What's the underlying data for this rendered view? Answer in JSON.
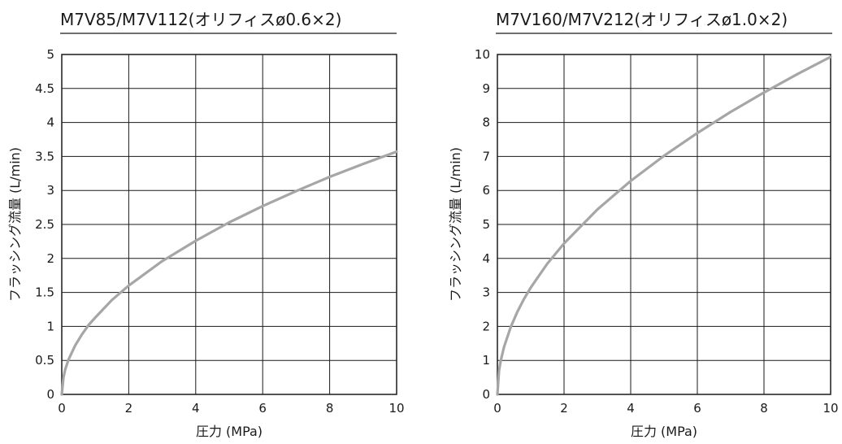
{
  "chart_data": [
    {
      "type": "line",
      "title": "M7V85/M7V112(オリフィスø0.6×2)",
      "xlabel": "圧力 (MPa)",
      "ylabel": "フラッシング流量 (L/min)",
      "xlim": [
        0,
        10
      ],
      "ylim": [
        0,
        5
      ],
      "xticks": [
        0,
        2,
        4,
        6,
        8,
        10
      ],
      "xtick_labels": [
        "0",
        "2",
        "4",
        "6",
        "8",
        "10"
      ],
      "yticks": [
        0,
        0.5,
        1,
        1.5,
        2,
        2.5,
        3,
        3.5,
        4,
        4.5,
        5
      ],
      "ytick_labels": [
        "0",
        "0.5",
        "1",
        "1.5",
        "2",
        "2.5",
        "3",
        "3.5",
        "4",
        "4.5",
        "5"
      ],
      "grid": true,
      "line_color": "#a6a6a6",
      "series": [
        {
          "x": [
            0,
            0.05,
            0.1,
            0.2,
            0.4,
            0.6,
            0.8,
            1,
            1.5,
            2,
            3,
            4,
            5,
            6,
            7,
            8,
            9,
            10
          ],
          "y": [
            0,
            0.25,
            0.36,
            0.51,
            0.72,
            0.88,
            1.02,
            1.13,
            1.39,
            1.6,
            1.96,
            2.26,
            2.53,
            2.77,
            2.99,
            3.2,
            3.39,
            3.57
          ]
        }
      ]
    },
    {
      "type": "line",
      "title": "M7V160/M7V212(オリフィスø1.0×2)",
      "xlabel": "圧力 (MPa)",
      "ylabel": "フラッシング流量 (L/min)",
      "xlim": [
        0,
        10
      ],
      "ylim": [
        0,
        10
      ],
      "xticks": [
        0,
        2,
        4,
        6,
        8,
        10
      ],
      "xtick_labels": [
        "0",
        "2",
        "4",
        "6",
        "8",
        "10"
      ],
      "yticks": [
        0,
        1,
        2,
        3,
        4,
        5,
        6,
        7,
        8,
        9,
        10
      ],
      "ytick_labels": [
        "0",
        "1",
        "2",
        "3",
        "4",
        "5",
        "6",
        "7",
        "8",
        "9",
        "10"
      ],
      "grid": true,
      "line_color": "#a6a6a6",
      "series": [
        {
          "x": [
            0,
            0.05,
            0.1,
            0.2,
            0.4,
            0.6,
            0.8,
            1,
            1.5,
            2,
            3,
            4,
            5,
            6,
            7,
            8,
            9,
            10
          ],
          "y": [
            0,
            0.7,
            0.99,
            1.4,
            1.98,
            2.43,
            2.81,
            3.14,
            3.85,
            4.44,
            5.44,
            6.28,
            7.02,
            7.69,
            8.31,
            8.88,
            9.42,
            9.93
          ]
        }
      ]
    }
  ]
}
